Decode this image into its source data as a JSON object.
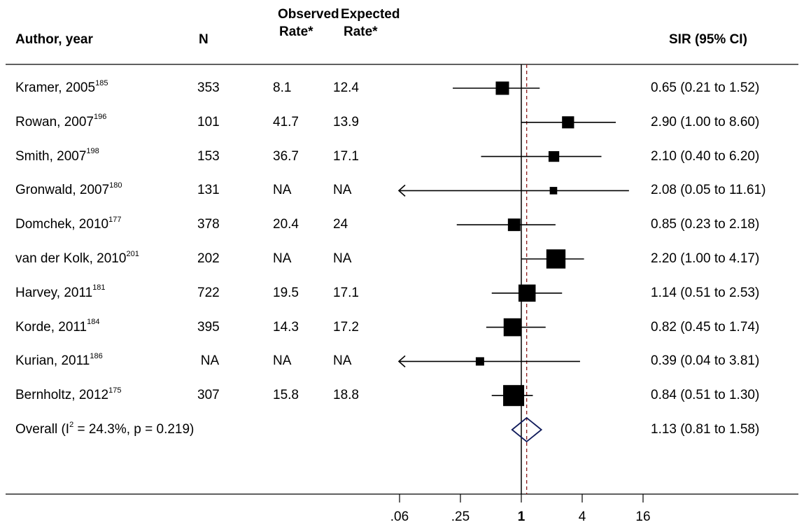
{
  "headers": {
    "author": "Author, year",
    "n": "N",
    "observed_top": "Observed",
    "observed_bottom": "Rate*",
    "expected_top": "Expected",
    "expected_bottom": "Rate*",
    "sir": "SIR (95% CI)"
  },
  "chart_data": {
    "type": "forest",
    "scale": "log2",
    "null_line": 1,
    "overall_line": 1.13,
    "x_ticks": [
      ".06",
      ".25",
      "1",
      "4",
      "16"
    ],
    "x_tick_values": [
      0.0625,
      0.25,
      1,
      4,
      16
    ],
    "xlim": [
      0.0625,
      16
    ],
    "rows": [
      {
        "author": "Kramer, 2005",
        "ref": "185",
        "n": "353",
        "observed": "8.1",
        "expected": "12.4",
        "sir": 0.65,
        "lo": 0.21,
        "hi": 1.52,
        "weight": 0.5,
        "ci_text": "0.65 (0.21 to 1.52)",
        "left_arrow": false
      },
      {
        "author": "Rowan, 2007",
        "ref": "196",
        "n": "101",
        "observed": "41.7",
        "expected": "13.9",
        "sir": 2.9,
        "lo": 1.0,
        "hi": 8.6,
        "weight": 0.42,
        "ci_text": "2.90 (1.00 to 8.60)",
        "left_arrow": false
      },
      {
        "author": "Smith, 2007",
        "ref": "198",
        "n": "153",
        "observed": "36.7",
        "expected": "17.1",
        "sir": 2.1,
        "lo": 0.4,
        "hi": 6.2,
        "weight": 0.33,
        "ci_text": "2.10 (0.40 to 6.20)",
        "left_arrow": false
      },
      {
        "author": "Gronwald, 2007",
        "ref": "180",
        "n": "131",
        "observed": "NA",
        "expected": "NA",
        "sir": 2.08,
        "lo": 0.05,
        "hi": 11.61,
        "weight": 0.12,
        "ci_text": "2.08 (0.05 to 11.61)",
        "left_arrow": true
      },
      {
        "author": "Domchek, 2010",
        "ref": "177",
        "n": "378",
        "observed": "20.4",
        "expected": "24",
        "sir": 0.85,
        "lo": 0.23,
        "hi": 2.18,
        "weight": 0.45,
        "ci_text": "0.85 (0.23 to 2.18)",
        "left_arrow": false
      },
      {
        "author": "van der Kolk, 2010",
        "ref": "201",
        "n": "202",
        "observed": "NA",
        "expected": "NA",
        "sir": 2.2,
        "lo": 1.0,
        "hi": 4.17,
        "weight": 0.88,
        "ci_text": "2.20 (1.00 to 4.17)",
        "left_arrow": false
      },
      {
        "author": "Harvey, 2011",
        "ref": "181",
        "n": "722",
        "observed": "19.5",
        "expected": "17.1",
        "sir": 1.14,
        "lo": 0.51,
        "hi": 2.53,
        "weight": 0.75,
        "ci_text": "1.14 (0.51 to 2.53)",
        "left_arrow": false
      },
      {
        "author": "Korde, 2011",
        "ref": "184",
        "n": "395",
        "observed": "14.3",
        "expected": "17.2",
        "sir": 0.82,
        "lo": 0.45,
        "hi": 1.74,
        "weight": 0.8,
        "ci_text": "0.82 (0.45 to 1.74)",
        "left_arrow": false
      },
      {
        "author": "Kurian, 2011",
        "ref": "186",
        "n": "NA",
        "observed": "NA",
        "expected": "NA",
        "sir": 0.39,
        "lo": 0.04,
        "hi": 3.81,
        "weight": 0.18,
        "ci_text": "0.39 (0.04 to 3.81)",
        "left_arrow": true
      },
      {
        "author": "Bernholtz, 2012",
        "ref": "175",
        "n": "307",
        "observed": "15.8",
        "expected": "18.8",
        "sir": 0.84,
        "lo": 0.51,
        "hi": 1.3,
        "weight": 1.0,
        "ci_text": "0.84 (0.51 to 1.30)",
        "left_arrow": false
      }
    ],
    "overall": {
      "label_prefix": "Overall (I",
      "label_sup": "2",
      "label_suffix": " = 24.3%, p = 0.219)",
      "sir": 1.13,
      "lo": 0.81,
      "hi": 1.58,
      "ci_text": "1.13 (0.81 to 1.58)"
    },
    "colors": {
      "marker": "#000000",
      "diamond": "#0f1a5a",
      "overall_line": "#8b1a1a",
      "null_line": "#000000"
    }
  }
}
